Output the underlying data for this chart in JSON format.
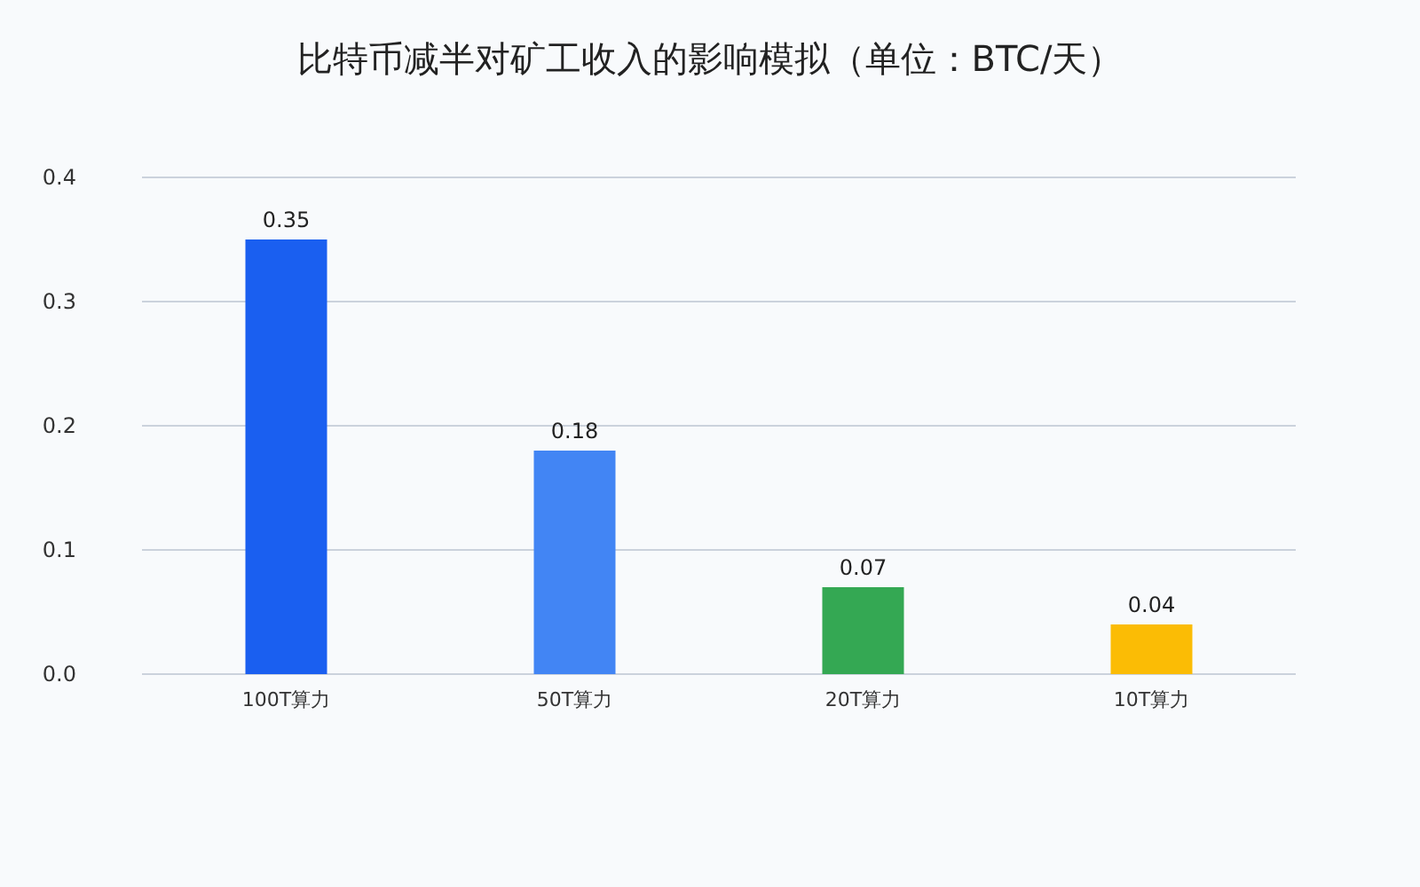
{
  "chart_data": {
    "type": "bar",
    "title": "比特币减半对矿工收入的影响模拟（单位：BTC/天）",
    "categories": [
      "100T算力",
      "50T算力",
      "20T算力",
      "10T算力"
    ],
    "values": [
      0.35,
      0.18,
      0.07,
      0.04
    ],
    "colors": [
      "#1a5ff0",
      "#4285f4",
      "#34a853",
      "#fbbc05"
    ],
    "ylim": [
      0,
      0.4
    ],
    "yticks": [
      {
        "value": 0,
        "label": "0.0"
      },
      0.1,
      0.2,
      0.3,
      0.4
    ],
    "grid": "y",
    "data_labels": true
  }
}
